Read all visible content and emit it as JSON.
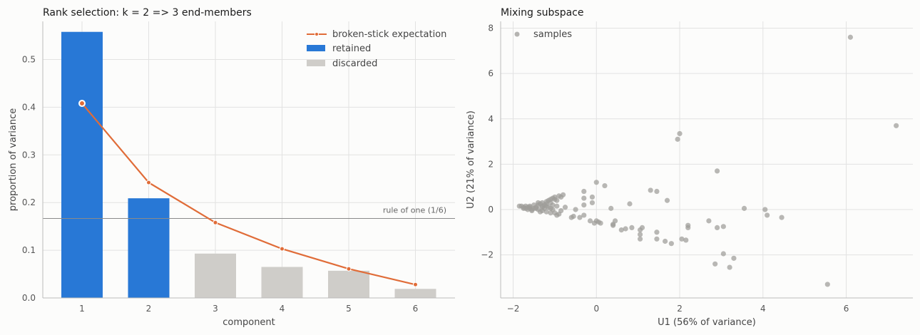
{
  "chart_data": [
    {
      "type": "bar",
      "title": "Rank selection: k = 2  =>  3 end-members",
      "xlabel": "component",
      "ylabel": "proportion of variance",
      "categories": [
        "1",
        "2",
        "3",
        "4",
        "5",
        "6"
      ],
      "ylim": [
        0,
        0.58
      ],
      "yticks": [
        "0.0",
        "0.1",
        "0.2",
        "0.3",
        "0.4",
        "0.5"
      ],
      "series": [
        {
          "name": "retained",
          "values": [
            0.558,
            0.209,
            null,
            null,
            null,
            null
          ],
          "color": "#2878d6"
        },
        {
          "name": "discarded",
          "values": [
            null,
            null,
            0.093,
            0.065,
            0.057,
            0.019
          ],
          "color": "#cfcdc9"
        },
        {
          "name": "broken-stick expectation",
          "type": "line",
          "values": [
            0.408,
            0.242,
            0.158,
            0.103,
            0.061,
            0.028
          ],
          "color": "#e06c38"
        }
      ],
      "reference_line": {
        "value": 0.1667,
        "label": "rule of one (1/6)"
      },
      "legend": "top-right",
      "grid": true
    },
    {
      "type": "scatter",
      "title": "Mixing subspace",
      "xlabel": "U1  (56% of variance)",
      "ylabel": "U2  (21% of variance)",
      "xlim": [
        -2.3,
        7.6
      ],
      "ylim": [
        -3.9,
        8.3
      ],
      "xticks": [
        "−2",
        "0",
        "2",
        "4",
        "6"
      ],
      "yticks": [
        "−2",
        "0",
        "2",
        "4",
        "6",
        "8"
      ],
      "series": [
        {
          "name": "samples",
          "color": "#9e9c98",
          "points": [
            [
              6.1,
              7.6
            ],
            [
              7.2,
              3.7
            ],
            [
              2.0,
              3.35
            ],
            [
              1.95,
              3.1
            ],
            [
              2.9,
              1.7
            ],
            [
              0.2,
              1.05
            ],
            [
              0.0,
              1.2
            ],
            [
              1.3,
              0.85
            ],
            [
              1.45,
              0.8
            ],
            [
              1.7,
              0.4
            ],
            [
              0.8,
              0.25
            ],
            [
              0.35,
              0.05
            ],
            [
              3.55,
              0.05
            ],
            [
              4.05,
              0.0
            ],
            [
              4.1,
              -0.25
            ],
            [
              4.45,
              -0.35
            ],
            [
              2.7,
              -0.5
            ],
            [
              3.05,
              -0.75
            ],
            [
              2.9,
              -0.8
            ],
            [
              2.2,
              -0.7
            ],
            [
              2.2,
              -0.8
            ],
            [
              2.05,
              -1.3
            ],
            [
              2.15,
              -1.35
            ],
            [
              1.65,
              -1.4
            ],
            [
              1.8,
              -1.5
            ],
            [
              1.45,
              -1.3
            ],
            [
              1.45,
              -1.0
            ],
            [
              1.05,
              -1.1
            ],
            [
              1.05,
              -1.3
            ],
            [
              1.05,
              -0.9
            ],
            [
              1.1,
              -0.8
            ],
            [
              0.85,
              -0.8
            ],
            [
              0.7,
              -0.85
            ],
            [
              0.6,
              -0.9
            ],
            [
              0.45,
              -0.5
            ],
            [
              0.4,
              -0.7
            ],
            [
              0.4,
              -0.65
            ],
            [
              3.05,
              -1.95
            ],
            [
              3.3,
              -2.15
            ],
            [
              2.85,
              -2.4
            ],
            [
              3.2,
              -2.55
            ],
            [
              5.55,
              -3.3
            ],
            [
              -0.3,
              0.8
            ],
            [
              -0.1,
              0.55
            ],
            [
              -0.3,
              0.5
            ],
            [
              -0.1,
              0.3
            ],
            [
              -0.3,
              0.2
            ],
            [
              -0.5,
              -0.0
            ],
            [
              -0.75,
              0.1
            ],
            [
              -0.8,
              0.65
            ],
            [
              -0.9,
              0.6
            ],
            [
              -0.3,
              -0.25
            ],
            [
              -0.4,
              -0.35
            ],
            [
              -0.55,
              -0.3
            ],
            [
              -0.6,
              -0.35
            ],
            [
              -0.15,
              -0.5
            ],
            [
              -0.0,
              -0.5
            ],
            [
              0.05,
              -0.55
            ],
            [
              0.1,
              -0.6
            ],
            [
              -0.05,
              -0.6
            ],
            [
              -0.9,
              -0.2
            ],
            [
              -0.95,
              -0.25
            ],
            [
              -1.0,
              -0.15
            ],
            [
              -1.1,
              -0.15
            ],
            [
              -1.2,
              -0.1
            ],
            [
              -1.3,
              -0.05
            ],
            [
              -1.05,
              0.0
            ],
            [
              -0.85,
              -0.05
            ],
            [
              -1.4,
              0.0
            ],
            [
              -1.5,
              0.05
            ],
            [
              -1.55,
              0.0
            ],
            [
              -1.6,
              0.05
            ],
            [
              -1.65,
              0.1
            ],
            [
              -1.7,
              0.15
            ],
            [
              -1.75,
              0.1
            ],
            [
              -1.8,
              0.15
            ],
            [
              -1.7,
              0.05
            ],
            [
              -1.6,
              0.15
            ],
            [
              -1.4,
              0.2
            ],
            [
              -1.35,
              0.25
            ],
            [
              -1.3,
              0.3
            ],
            [
              -1.25,
              0.2
            ],
            [
              -1.2,
              0.35
            ],
            [
              -1.15,
              0.4
            ],
            [
              -1.1,
              0.45
            ],
            [
              -1.05,
              0.5
            ],
            [
              -1.0,
              0.45
            ],
            [
              -0.95,
              0.4
            ],
            [
              -1.1,
              0.3
            ],
            [
              -1.2,
              0.15
            ],
            [
              -1.3,
              0.1
            ],
            [
              -1.45,
              0.1
            ],
            [
              -1.5,
              0.2
            ],
            [
              -1.65,
              0.0
            ],
            [
              -1.55,
              -0.05
            ],
            [
              -1.35,
              -0.1
            ],
            [
              -1.25,
              0.05
            ],
            [
              -1.15,
              0.1
            ],
            [
              -1.05,
              0.2
            ],
            [
              -0.95,
              0.15
            ],
            [
              -1.85,
              0.15
            ],
            [
              -1.75,
              0.05
            ],
            [
              -1.6,
              0.1
            ],
            [
              -1.45,
              0.05
            ],
            [
              -1.2,
              0.25
            ],
            [
              -1.0,
              0.55
            ],
            [
              -0.85,
              0.55
            ],
            [
              -1.1,
              0.05
            ],
            [
              -1.4,
              0.3
            ],
            [
              -1.3,
              0.15
            ]
          ]
        }
      ],
      "legend": "top-left",
      "grid": true
    }
  ]
}
